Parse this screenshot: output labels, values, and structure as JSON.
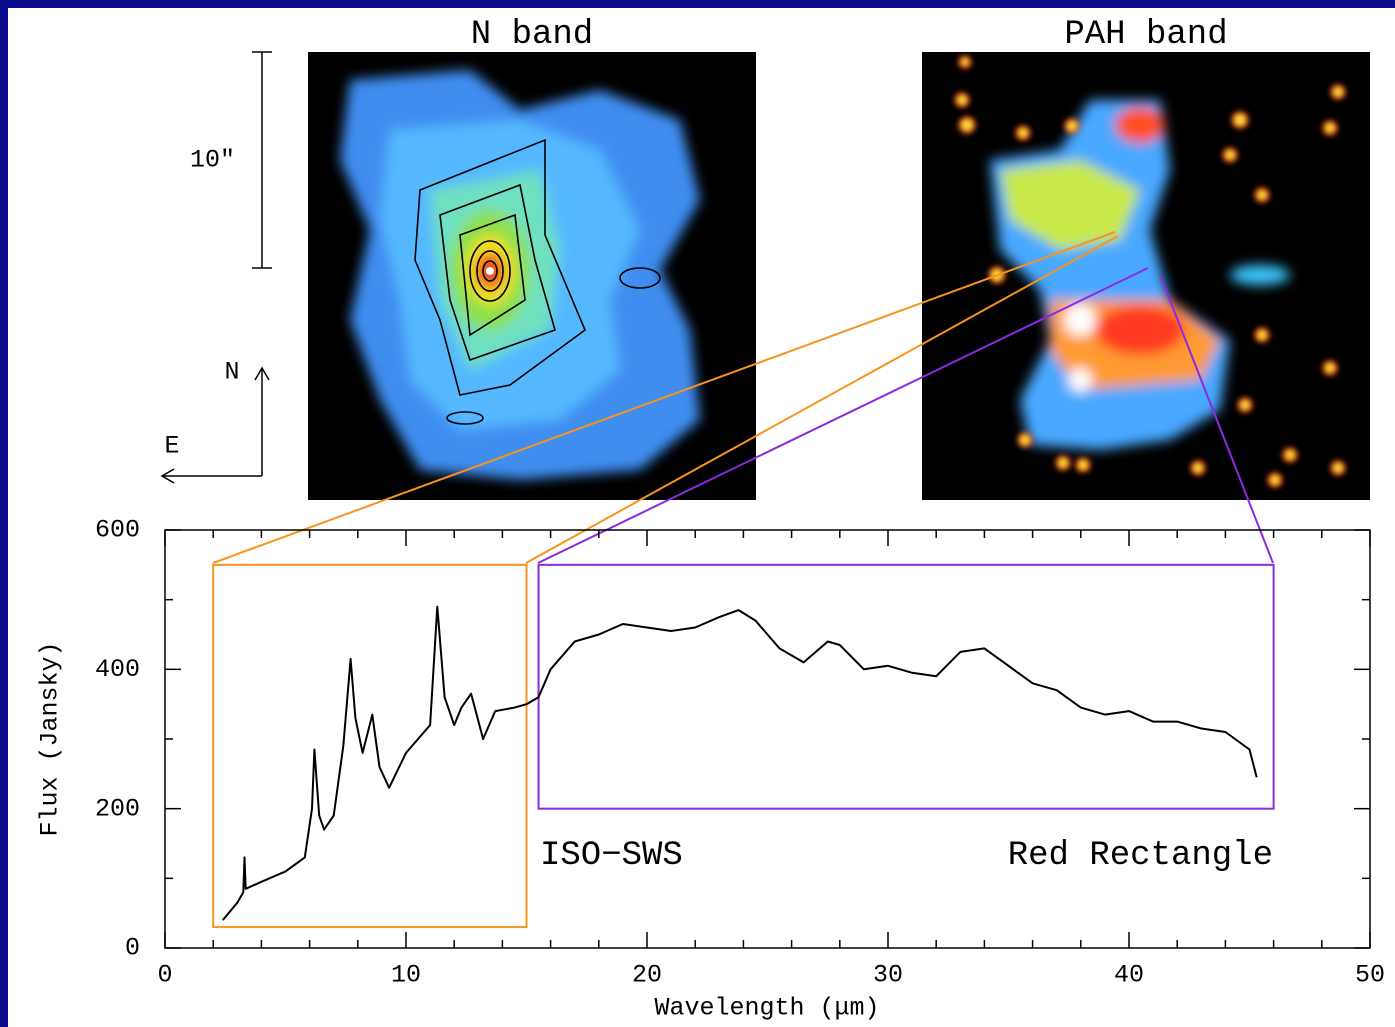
{
  "panels": [
    {
      "title": "N band"
    },
    {
      "title": "PAH band"
    }
  ],
  "scale_bar_label": "10″",
  "compass": {
    "north": "N",
    "east": "E"
  },
  "chart_data": {
    "type": "line",
    "x_label": "Wavelength (μm)",
    "y_label": "Flux (Jansky)",
    "annotations": [
      "ISO−SWS",
      "Red Rectangle"
    ],
    "color": "#000000",
    "x": [
      2.4,
      3.0,
      3.25,
      3.3,
      3.35,
      4,
      5,
      5.8,
      6.1,
      6.2,
      6.4,
      6.6,
      7,
      7.4,
      7.7,
      7.9,
      8.2,
      8.6,
      8.9,
      9.3,
      10,
      11,
      11.3,
      11.6,
      12,
      12.3,
      12.7,
      13.2,
      13.7,
      14.5,
      15,
      15.5,
      16,
      17,
      18,
      19,
      20,
      21,
      22,
      23,
      23.8,
      24.5,
      25.5,
      26.5,
      27.5,
      28,
      29,
      30,
      31,
      32,
      33,
      34,
      35,
      36,
      37,
      38,
      39,
      40,
      41,
      42,
      43,
      44,
      45,
      45.3
    ],
    "values": [
      40,
      65,
      80,
      130,
      85,
      95,
      110,
      130,
      200,
      285,
      190,
      170,
      190,
      290,
      415,
      330,
      280,
      335,
      260,
      230,
      280,
      320,
      490,
      360,
      320,
      345,
      365,
      300,
      340,
      345,
      350,
      360,
      400,
      440,
      450,
      465,
      460,
      455,
      460,
      475,
      485,
      470,
      430,
      410,
      440,
      435,
      400,
      405,
      395,
      390,
      425,
      430,
      405,
      380,
      370,
      345,
      335,
      340,
      325,
      325,
      315,
      310,
      285,
      245
    ],
    "regions": [
      {
        "color": "#f7941d",
        "x": [
          2,
          15
        ],
        "y": [
          30,
          550
        ]
      },
      {
        "color": "#8a2be2",
        "x": [
          15.5,
          46
        ],
        "y": [
          200,
          550
        ]
      }
    ],
    "xlim": [
      0,
      50
    ],
    "ylim": [
      0,
      600
    ],
    "xticks": [
      0,
      10,
      20,
      30,
      40,
      50
    ],
    "yticks": [
      0,
      200,
      400,
      600
    ],
    "xminorticks": [
      2,
      4,
      6,
      8,
      12,
      14,
      16,
      18,
      22,
      24,
      26,
      28,
      32,
      34,
      36,
      38,
      42,
      44,
      46,
      48
    ],
    "yminorticks": [
      100,
      300,
      500
    ]
  }
}
